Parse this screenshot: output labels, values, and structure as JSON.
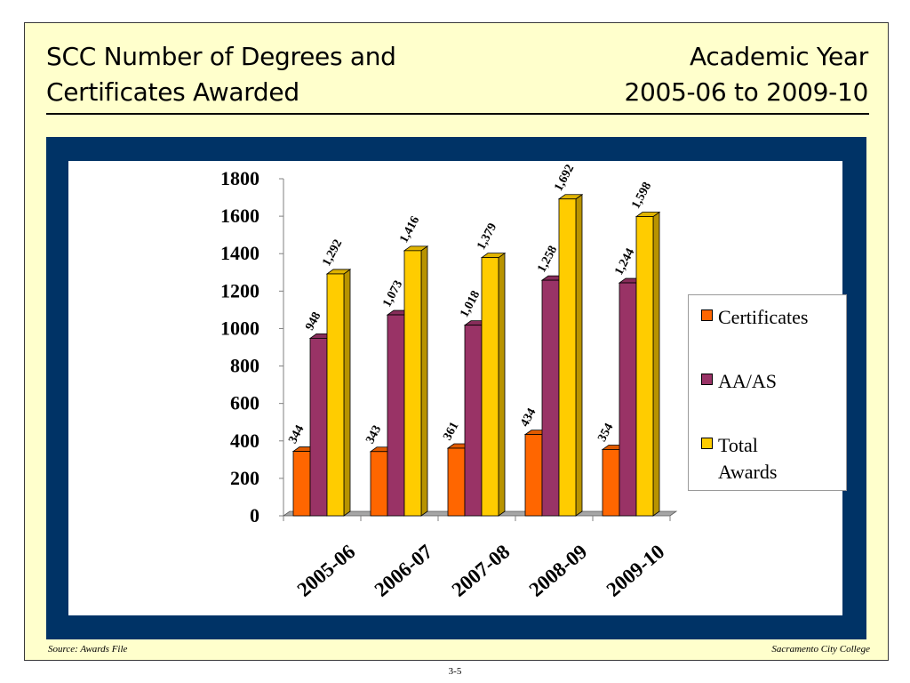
{
  "slide": {
    "title_left": [
      "SCC Number of Degrees and",
      "Certificates Awarded"
    ],
    "title_right": [
      "Academic Year",
      "2005-06 to 2009-10"
    ],
    "footer_left": "Source:  Awards File",
    "footer_right": "Sacramento City College",
    "page_number": "3-5"
  },
  "colors": {
    "background": "#ffffcc",
    "frame": "#003366",
    "certificates": "#ff6600",
    "aa_as": "#993366",
    "total": "#ffcc00"
  },
  "chart_data": {
    "type": "bar",
    "style": "3d-clustered-column",
    "categories": [
      "2005-06",
      "2006-07",
      "2007-08",
      "2008-09",
      "2009-10"
    ],
    "series": [
      {
        "name": "Certificates",
        "values": [
          344,
          343,
          361,
          434,
          354
        ],
        "labels": [
          "344",
          "343",
          "361",
          "434",
          "354"
        ],
        "color": "#ff6600"
      },
      {
        "name": "AA/AS",
        "values": [
          948,
          1073,
          1018,
          1258,
          1244
        ],
        "labels": [
          "948",
          "1,073",
          "1,018",
          "1,258",
          "1,244"
        ],
        "color": "#993366"
      },
      {
        "name": "Total Awards",
        "values": [
          1292,
          1416,
          1379,
          1692,
          1598
        ],
        "labels": [
          "1,292",
          "1,416",
          "1,379",
          "1,692",
          "1,598"
        ],
        "color": "#ffcc00"
      }
    ],
    "yticks": [
      "0",
      "200",
      "400",
      "600",
      "800",
      "1000",
      "1200",
      "1400",
      "1600",
      "1800"
    ],
    "ylim": [
      0,
      1800
    ],
    "grid": false,
    "legend_position": "right"
  }
}
